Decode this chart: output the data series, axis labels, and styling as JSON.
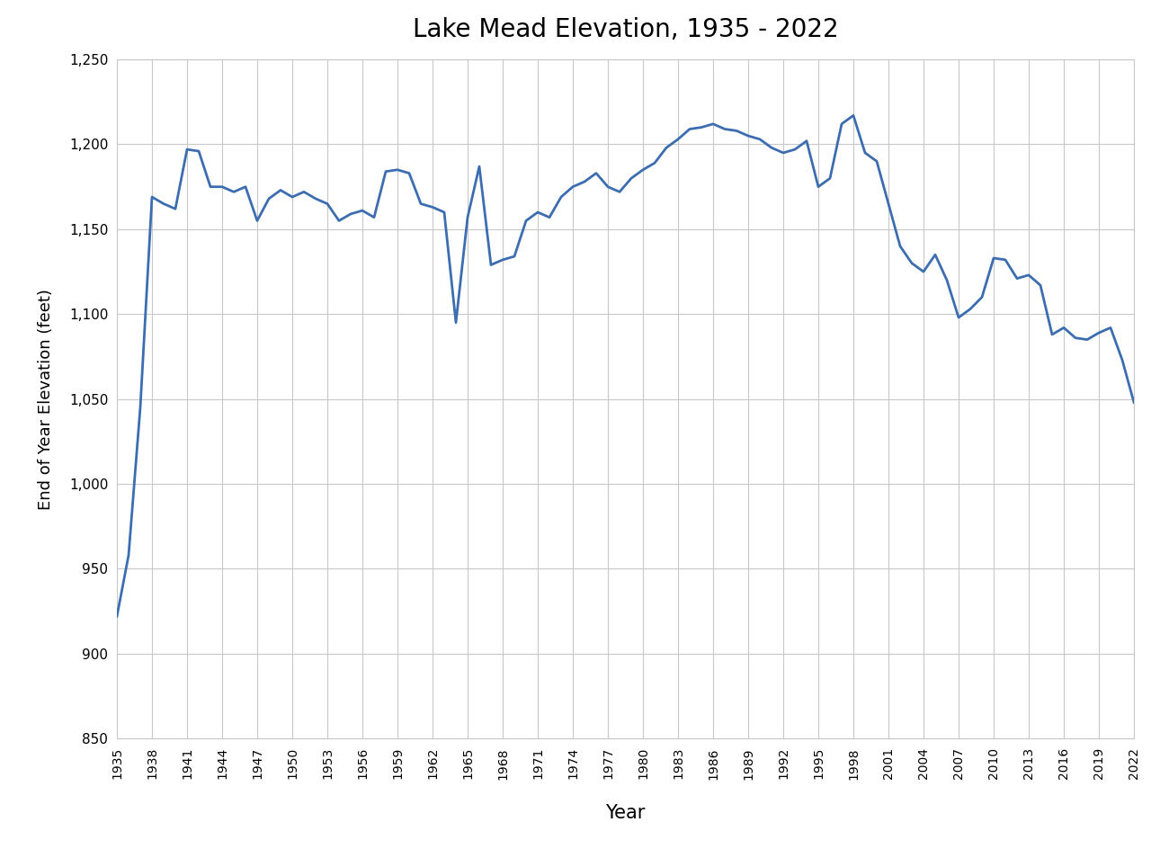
{
  "title": "Lake Mead Elevation, 1935 - 2022",
  "xlabel": "Year",
  "ylabel": "End of Year Elevation (feet)",
  "line_color": "#3B6DB0",
  "background_color": "#ffffff",
  "plot_bg_color": "#ffffff",
  "grid_color": "#c8c8c8",
  "years": [
    1935,
    1936,
    1937,
    1938,
    1939,
    1940,
    1941,
    1942,
    1943,
    1944,
    1945,
    1946,
    1947,
    1948,
    1949,
    1950,
    1951,
    1952,
    1953,
    1954,
    1955,
    1956,
    1957,
    1958,
    1959,
    1960,
    1961,
    1962,
    1963,
    1964,
    1965,
    1966,
    1967,
    1968,
    1969,
    1970,
    1971,
    1972,
    1973,
    1974,
    1975,
    1976,
    1977,
    1978,
    1979,
    1980,
    1981,
    1982,
    1983,
    1984,
    1985,
    1986,
    1987,
    1988,
    1989,
    1990,
    1991,
    1992,
    1993,
    1994,
    1995,
    1996,
    1997,
    1998,
    1999,
    2000,
    2001,
    2002,
    2003,
    2004,
    2005,
    2006,
    2007,
    2008,
    2009,
    2010,
    2011,
    2012,
    2013,
    2014,
    2015,
    2016,
    2017,
    2018,
    2019,
    2020,
    2021,
    2022
  ],
  "elevations": [
    922,
    958,
    1045,
    1169,
    1165,
    1162,
    1197,
    1196,
    1175,
    1175,
    1172,
    1175,
    1155,
    1168,
    1173,
    1169,
    1172,
    1168,
    1165,
    1155,
    1159,
    1161,
    1157,
    1184,
    1185,
    1183,
    1165,
    1163,
    1160,
    1095,
    1157,
    1187,
    1129,
    1132,
    1134,
    1155,
    1160,
    1157,
    1169,
    1175,
    1178,
    1183,
    1175,
    1172,
    1180,
    1185,
    1189,
    1198,
    1203,
    1209,
    1210,
    1212,
    1209,
    1208,
    1205,
    1203,
    1198,
    1195,
    1197,
    1202,
    1175,
    1180,
    1212,
    1217,
    1195,
    1190,
    1165,
    1140,
    1130,
    1125,
    1135,
    1120,
    1098,
    1103,
    1110,
    1133,
    1132,
    1121,
    1123,
    1117,
    1088,
    1092,
    1086,
    1085,
    1089,
    1092,
    1073,
    1048
  ],
  "ylim": [
    850,
    1250
  ],
  "yticks": [
    850,
    900,
    950,
    1000,
    1050,
    1100,
    1150,
    1200,
    1250
  ],
  "xtick_step": 3,
  "linewidth": 2.0,
  "title_fontsize": 20,
  "xlabel_fontsize": 15,
  "ylabel_fontsize": 13
}
